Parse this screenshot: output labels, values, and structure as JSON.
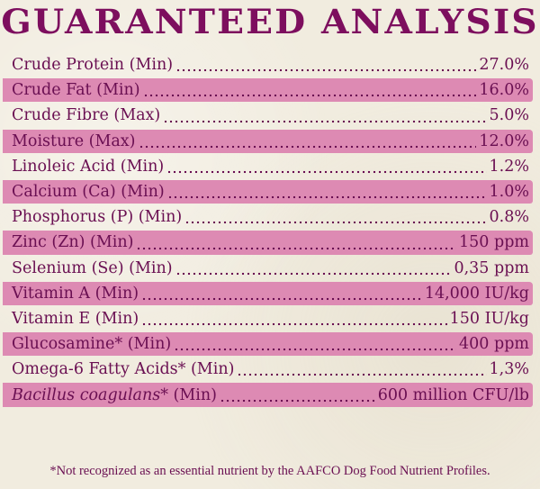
{
  "title": "GUARANTEED ANALYSIS",
  "colors": {
    "title": "#7d0e5e",
    "text": "#6a0f52",
    "band": "#dd8ab3",
    "background": "#f1ecdf"
  },
  "rows": [
    {
      "label": "Crude Protein (Min)",
      "value": "27.0%",
      "banded": false
    },
    {
      "label": "Crude Fat (Min)",
      "value": "16.0%",
      "banded": true
    },
    {
      "label": "Crude Fibre (Max)",
      "value": "5.0%",
      "banded": false
    },
    {
      "label": "Moisture (Max)",
      "value": "12.0%",
      "banded": true
    },
    {
      "label": "Linoleic Acid (Min)",
      "value": "1.2%",
      "banded": false
    },
    {
      "label": "Calcium (Ca) (Min)",
      "value": "1.0%",
      "banded": true
    },
    {
      "label": "Phosphorus (P) (Min)",
      "value": "0.8%",
      "banded": false
    },
    {
      "label": "Zinc (Zn) (Min)",
      "value": "150 ppm",
      "banded": true
    },
    {
      "label": "Selenium (Se) (Min)",
      "value": "0,35 ppm",
      "banded": false
    },
    {
      "label": "Vitamin A (Min)",
      "value": "14,000 IU/kg",
      "banded": true
    },
    {
      "label": "Vitamin E (Min)",
      "value": "150 IU/kg",
      "banded": false
    },
    {
      "label": "Glucosamine* (Min)",
      "value": "400 ppm",
      "banded": true
    },
    {
      "label": "Omega-6 Fatty Acids* (Min)",
      "value": "1,3%",
      "banded": false
    },
    {
      "label_italic": "Bacillus coagulans*",
      "label": " (Min)",
      "value": "600 million CFU/lb",
      "banded": true
    }
  ],
  "footnote": "*Not recognized as an essential nutrient by the AAFCO Dog Food Nutrient Profiles."
}
